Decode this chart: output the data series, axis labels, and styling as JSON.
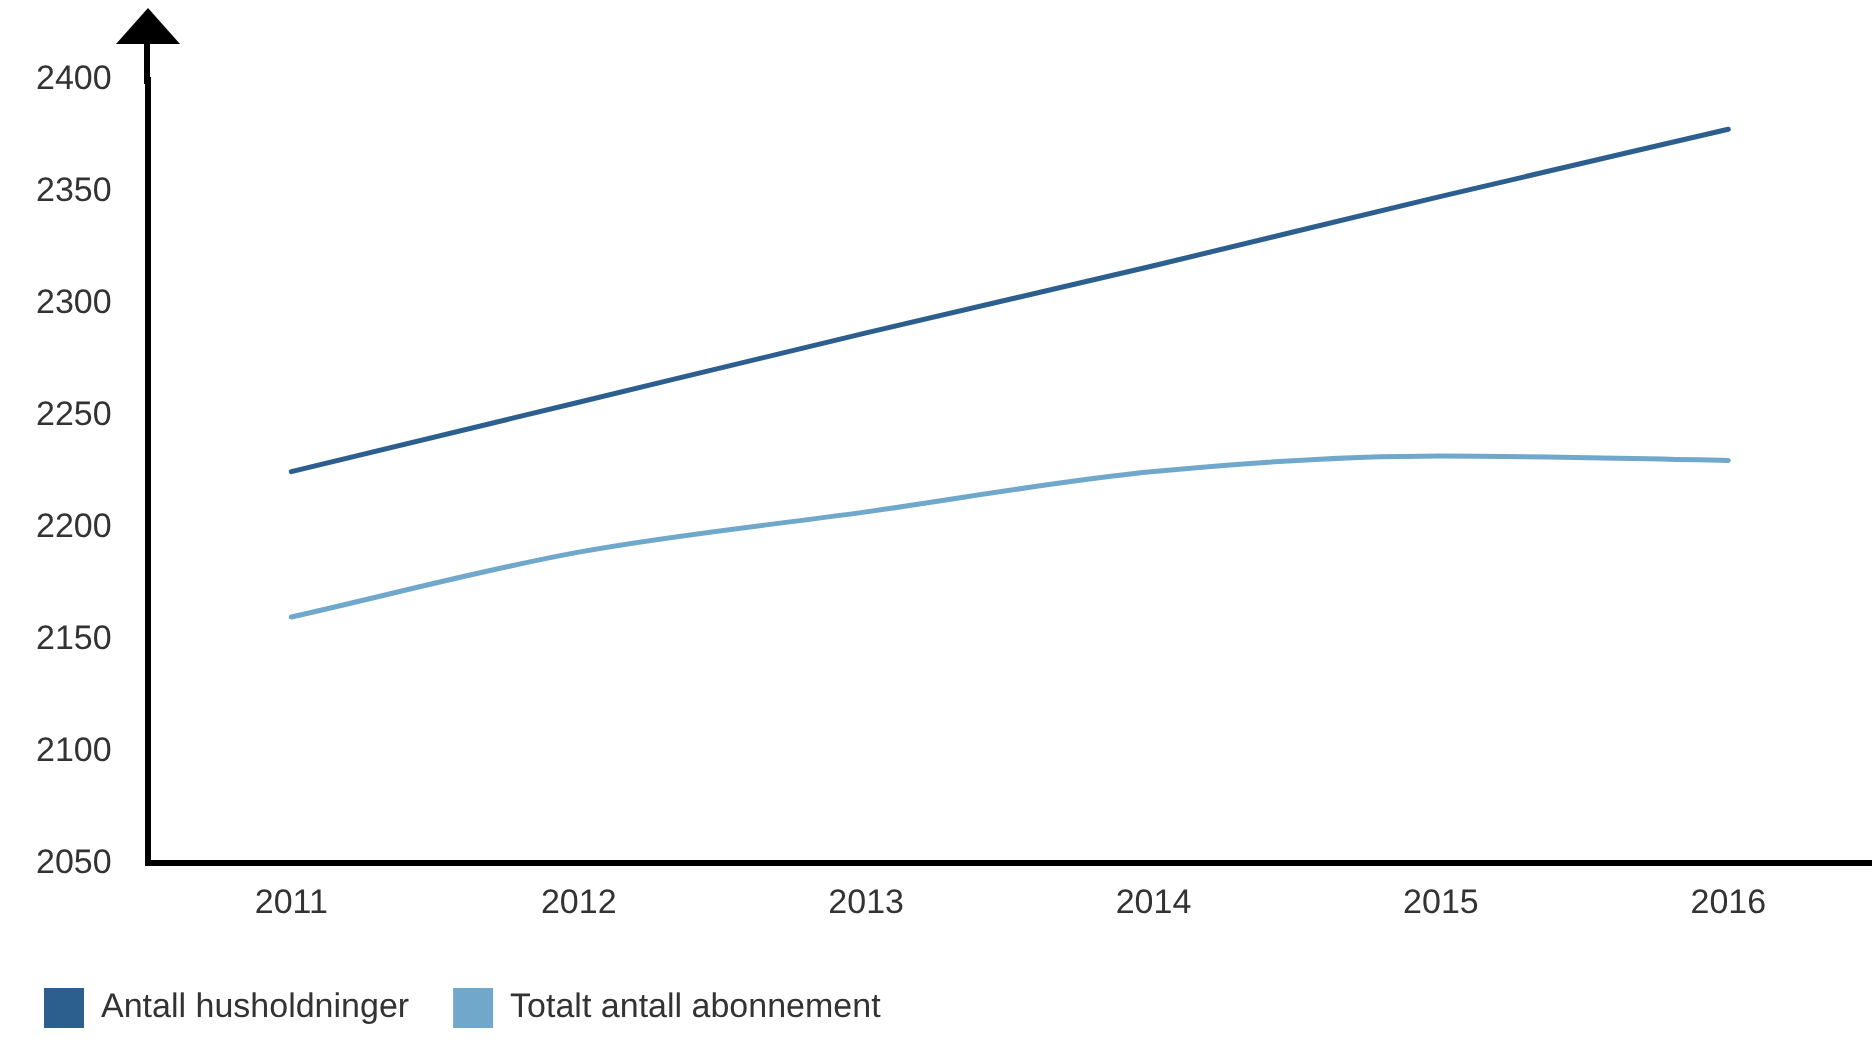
{
  "chart_data": {
    "type": "line",
    "categories": [
      "2011",
      "2012",
      "2013",
      "2014",
      "2015",
      "2016"
    ],
    "series": [
      {
        "name": "Antall husholdninger",
        "color": "#2d5f8e",
        "values": [
          2225,
          2256,
          2287,
          2317,
          2348,
          2378
        ]
      },
      {
        "name": "Totalt antall abonnement",
        "color": "#6fa8cb",
        "values": [
          2160,
          2189,
          2207,
          2225,
          2232,
          2230
        ]
      }
    ],
    "ylim": [
      2050,
      2400
    ],
    "yticks": [
      2050,
      2100,
      2150,
      2200,
      2250,
      2300,
      2350,
      2400
    ],
    "grid": false,
    "legend": "bottom left",
    "marker": "none",
    "line_style": "solid"
  }
}
